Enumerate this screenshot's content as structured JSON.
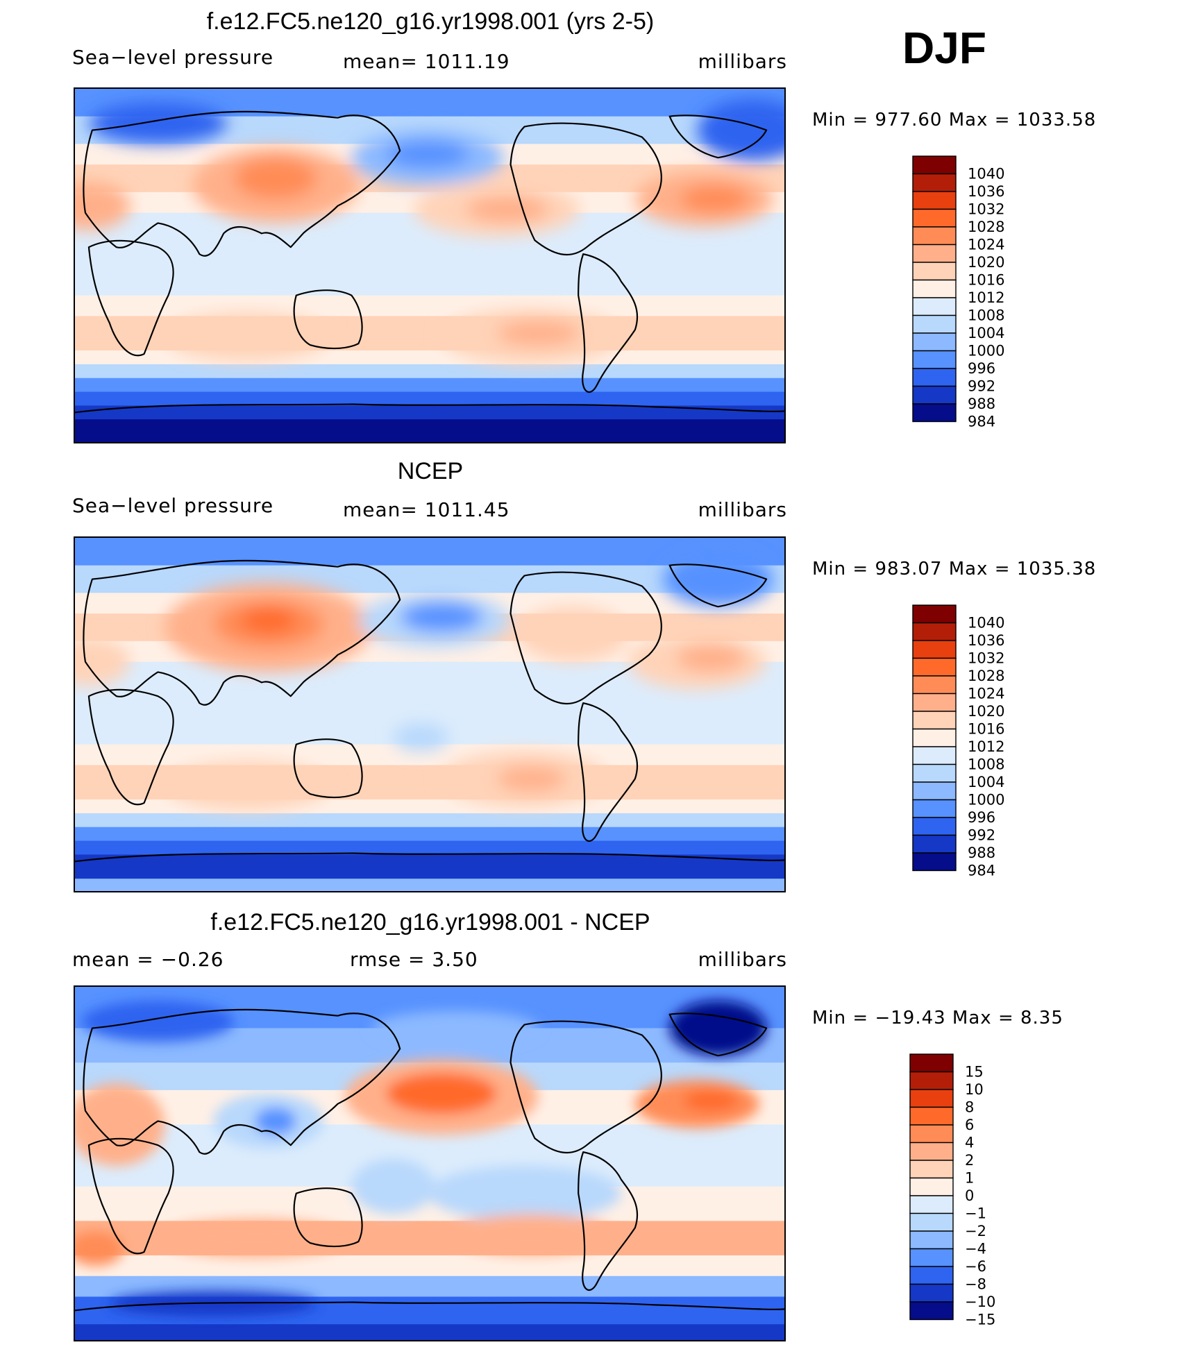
{
  "season": "DJF",
  "panels": [
    {
      "id": "model",
      "title": "f.e12.FC5.ne120_g16.yr1998.001 (yrs 2-5)",
      "left_label": "Sea−level pressure",
      "center_label": "mean=  1011.19",
      "right_label": "millibars",
      "min_max": "Min  =  977.60  Max  =  1033.58",
      "colorbar": {
        "labels": [
          "1040",
          "1036",
          "1032",
          "1028",
          "1024",
          "1020",
          "1016",
          "1012",
          "1008",
          "1004",
          "1000",
          "996",
          "992",
          "988",
          "984"
        ],
        "colors": [
          "#7f0000",
          "#b31e08",
          "#e8400f",
          "#ff6a2b",
          "#ff8c57",
          "#ffb08a",
          "#ffd3b8",
          "#fff0e6",
          "#dcecfc",
          "#b8d8fc",
          "#8cb9ff",
          "#5792ff",
          "#2e64f0",
          "#1638c7",
          "#050d8a"
        ]
      }
    },
    {
      "id": "obs",
      "title": "NCEP",
      "left_label": "Sea−level pressure",
      "center_label": "mean=  1011.45",
      "right_label": "millibars",
      "min_max": "Min  =  983.07  Max  =  1035.38",
      "colorbar": {
        "labels": [
          "1040",
          "1036",
          "1032",
          "1028",
          "1024",
          "1020",
          "1016",
          "1012",
          "1008",
          "1004",
          "1000",
          "996",
          "992",
          "988",
          "984"
        ],
        "colors": [
          "#7f0000",
          "#b31e08",
          "#e8400f",
          "#ff6a2b",
          "#ff8c57",
          "#ffb08a",
          "#ffd3b8",
          "#fff0e6",
          "#dcecfc",
          "#b8d8fc",
          "#8cb9ff",
          "#5792ff",
          "#2e64f0",
          "#1638c7",
          "#050d8a"
        ]
      }
    },
    {
      "id": "diff",
      "title": "f.e12.FC5.ne120_g16.yr1998.001 - NCEP",
      "left_label": "mean  =    −0.26",
      "center_label": "rmse  =     3.50",
      "right_label": "millibars",
      "min_max": "Min  = −19.43  Max  =     8.35",
      "colorbar": {
        "labels": [
          "15",
          "10",
          "8",
          "6",
          "4",
          "2",
          "1",
          "0",
          "−1",
          "−2",
          "−4",
          "−6",
          "−8",
          "−10",
          "−15"
        ],
        "colors": [
          "#7f0000",
          "#b31e08",
          "#e8400f",
          "#ff6a2b",
          "#ff8c57",
          "#ffb08a",
          "#ffd3b8",
          "#fff0e6",
          "#dcecfc",
          "#b8d8fc",
          "#8cb9ff",
          "#5792ff",
          "#2e64f0",
          "#1638c7",
          "#050d8a"
        ]
      }
    }
  ]
}
